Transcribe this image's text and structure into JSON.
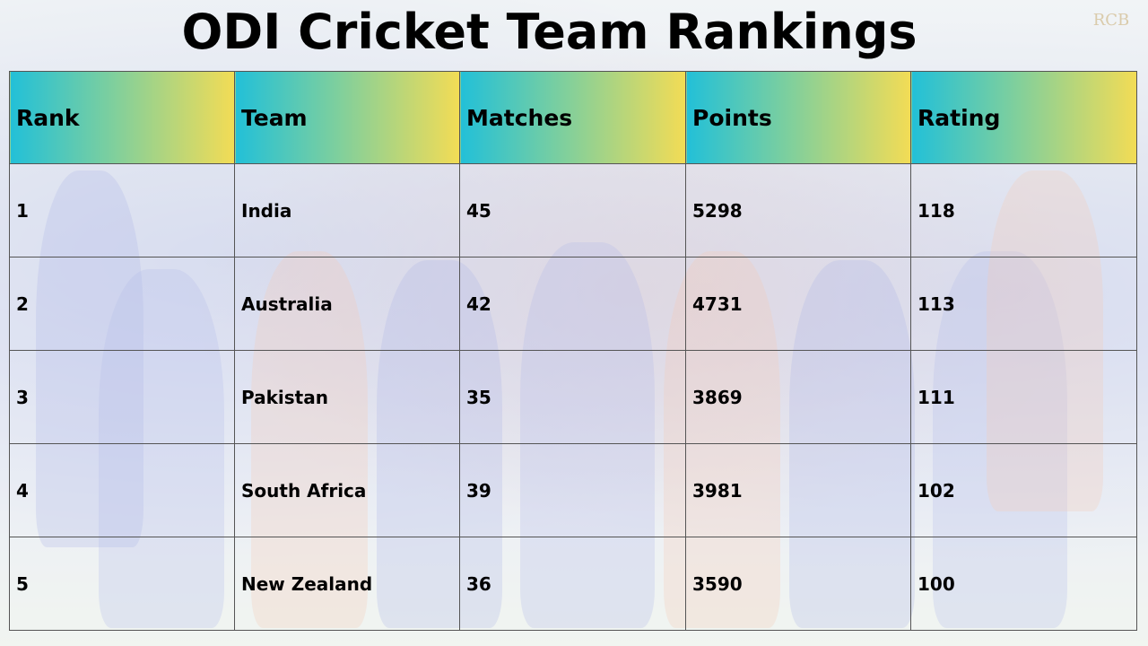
{
  "page_title": "ODI Cricket Team Rankings",
  "watermark": "RCB",
  "colors": {
    "header_gradient_start": "#22c0d8",
    "header_gradient_mid": "#7dcf9e",
    "header_gradient_end": "#f3dc55"
  },
  "chart_data": {
    "type": "table",
    "title": "ODI Cricket Team Rankings",
    "columns": [
      "Rank",
      "Team",
      "Matches",
      "Points",
      "Rating"
    ],
    "rows": [
      [
        "1",
        "India",
        "45",
        "5298",
        "118"
      ],
      [
        "2",
        "Australia",
        "42",
        "4731",
        "113"
      ],
      [
        "3",
        "Pakistan",
        "35",
        "3869",
        "111"
      ],
      [
        "4",
        "South Africa",
        "39",
        "3981",
        "102"
      ],
      [
        "5",
        "New Zealand",
        "36",
        "3590",
        "100"
      ]
    ]
  }
}
